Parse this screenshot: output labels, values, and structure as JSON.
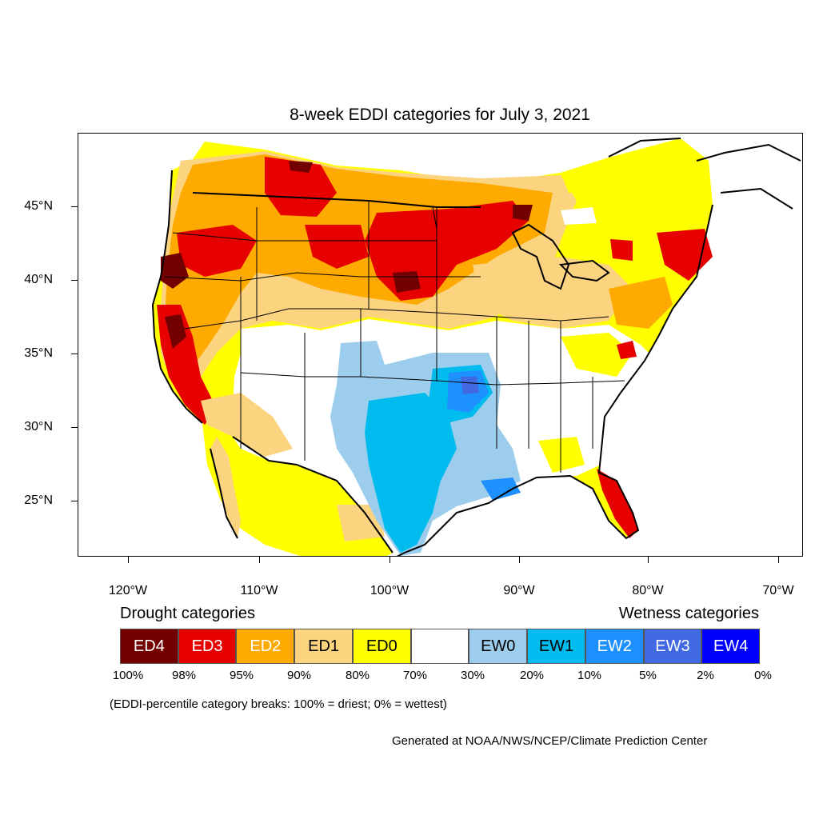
{
  "title": "8-week EDDI categories for July 3, 2021",
  "map": {
    "lat_labels": [
      "45°N",
      "40°N",
      "35°N",
      "30°N",
      "25°N"
    ],
    "lon_labels": [
      "120°W",
      "110°W",
      "100°W",
      "90°W",
      "80°W",
      "70°W"
    ]
  },
  "legend": {
    "drought_heading": "Drought categories",
    "wetness_heading": "Wetness categories",
    "categories": [
      {
        "label": "ED4",
        "color": "#730000",
        "text_color": "#ffffff"
      },
      {
        "label": "ED3",
        "color": "#e60000",
        "text_color": "#ffffff"
      },
      {
        "label": "ED2",
        "color": "#ffaa00",
        "text_color": "#ffffff"
      },
      {
        "label": "ED1",
        "color": "#fcd37f",
        "text_color": "#000000"
      },
      {
        "label": "ED0",
        "color": "#ffff00",
        "text_color": "#000000"
      },
      {
        "label": "",
        "color": "#ffffff",
        "text_color": "#000000"
      },
      {
        "label": "EW0",
        "color": "#9dcdec",
        "text_color": "#000000"
      },
      {
        "label": "EW1",
        "color": "#00bbee",
        "text_color": "#000000"
      },
      {
        "label": "EW2",
        "color": "#1f90ff",
        "text_color": "#ffffff"
      },
      {
        "label": "EW3",
        "color": "#4169e1",
        "text_color": "#ffffff"
      },
      {
        "label": "EW4",
        "color": "#0000ff",
        "text_color": "#ffffff"
      }
    ],
    "breaks": [
      "100%",
      "98%",
      "95%",
      "90%",
      "80%",
      "70%",
      "30%",
      "20%",
      "10%",
      "5%",
      "2%",
      "0%"
    ]
  },
  "note": "(EDDI-percentile category breaks: 100% = driest; 0% = wettest)",
  "credit": "Generated at NOAA/NWS/NCEP/Climate Prediction Center"
}
